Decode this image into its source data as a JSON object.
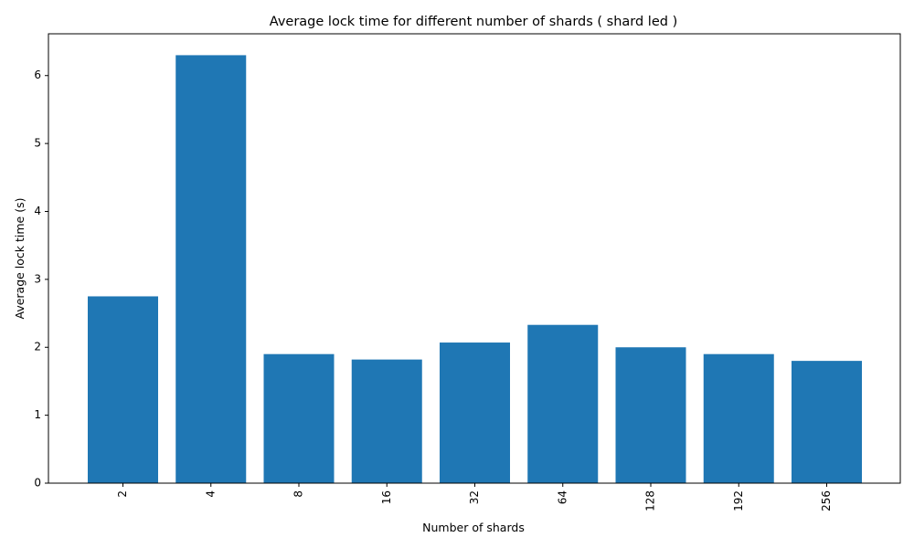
{
  "chart_data": {
    "type": "bar",
    "title": "Average lock time for different number of shards ( shard led )",
    "xlabel": "Number of shards",
    "ylabel": "Average lock time (s)",
    "categories": [
      "2",
      "4",
      "8",
      "16",
      "32",
      "64",
      "128",
      "192",
      "256"
    ],
    "values": [
      2.75,
      6.3,
      1.9,
      1.82,
      2.07,
      2.33,
      2.0,
      1.9,
      1.8
    ],
    "ylim": [
      0,
      6.615
    ],
    "yticks": [
      "0",
      "1",
      "2",
      "3",
      "4",
      "5",
      "6"
    ],
    "bar_color": "#1f77b4",
    "grid": false,
    "x_tick_rotation": "vertical"
  }
}
